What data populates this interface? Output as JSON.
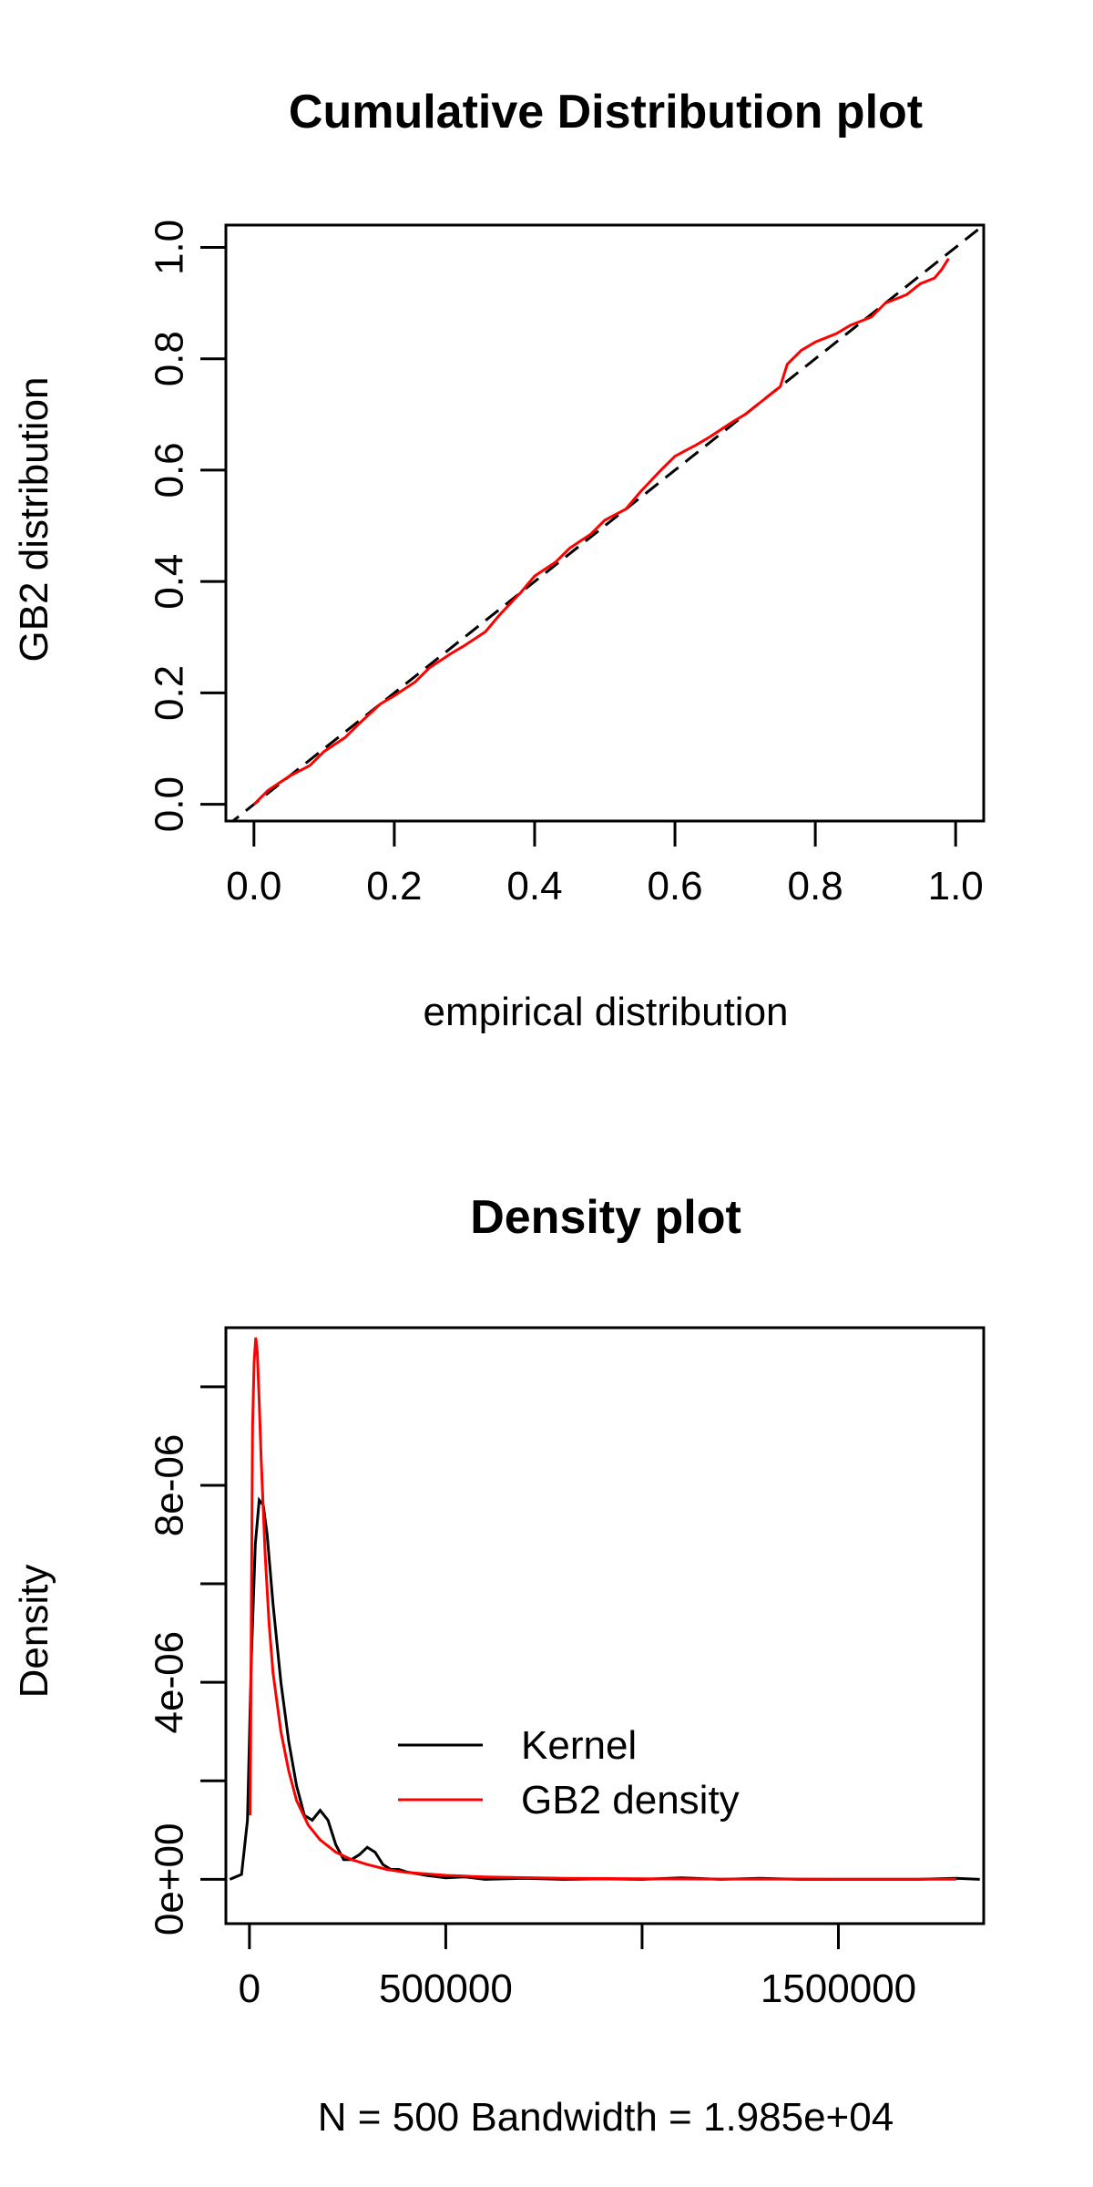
{
  "chart_data": [
    {
      "type": "line",
      "title": "Cumulative Distribution plot",
      "xlabel": "empirical distribution",
      "ylabel": "GB2 distribution",
      "xlim": [
        -0.04,
        1.04
      ],
      "ylim": [
        -0.03,
        1.04
      ],
      "xticks": [
        "0.0",
        "0.2",
        "0.4",
        "0.6",
        "0.8",
        "1.0"
      ],
      "yticks": [
        "0.0",
        "0.2",
        "0.4",
        "0.6",
        "0.8",
        "1.0"
      ],
      "grid": false,
      "colors": {
        "fitted": "#ff0000",
        "reference": "#000000"
      },
      "series": [
        {
          "style": "dashed",
          "color": "#000000",
          "x": [
            -0.04,
            1.04
          ],
          "y": [
            -0.04,
            1.04
          ]
        },
        {
          "style": "solid",
          "color": "#ff0000",
          "x": [
            0.0,
            0.02,
            0.05,
            0.08,
            0.1,
            0.13,
            0.15,
            0.18,
            0.2,
            0.23,
            0.25,
            0.28,
            0.3,
            0.33,
            0.35,
            0.38,
            0.4,
            0.43,
            0.45,
            0.48,
            0.5,
            0.53,
            0.55,
            0.58,
            0.6,
            0.63,
            0.65,
            0.68,
            0.7,
            0.73,
            0.75,
            0.76,
            0.78,
            0.8,
            0.83,
            0.85,
            0.88,
            0.9,
            0.93,
            0.95,
            0.97,
            0.98,
            0.99
          ],
          "y": [
            0.0,
            0.025,
            0.05,
            0.07,
            0.095,
            0.12,
            0.145,
            0.18,
            0.195,
            0.22,
            0.245,
            0.27,
            0.285,
            0.31,
            0.34,
            0.38,
            0.41,
            0.435,
            0.46,
            0.485,
            0.51,
            0.53,
            0.56,
            0.6,
            0.625,
            0.645,
            0.66,
            0.685,
            0.7,
            0.73,
            0.75,
            0.79,
            0.815,
            0.83,
            0.845,
            0.86,
            0.875,
            0.9,
            0.915,
            0.935,
            0.945,
            0.96,
            0.98
          ]
        }
      ]
    },
    {
      "type": "line",
      "title": "Density plot",
      "xlabel": "N = 500   Bandwidth = 1.985e+04",
      "ylabel": "Density",
      "xlim": [
        -60000,
        1870000
      ],
      "ylim": [
        -9e-07,
        1.12e-05
      ],
      "xticks": [
        {
          "value": 0,
          "label": "0"
        },
        {
          "value": 500000,
          "label": "500000"
        },
        {
          "value": 1000000,
          "label": ""
        },
        {
          "value": 1500000,
          "label": "1500000"
        }
      ],
      "yticks": [
        {
          "value": 0,
          "label": "0e+00"
        },
        {
          "value": 2e-06,
          "label": ""
        },
        {
          "value": 4e-06,
          "label": "4e-06"
        },
        {
          "value": 6e-06,
          "label": ""
        },
        {
          "value": 8e-06,
          "label": "8e-06"
        },
        {
          "value": 1e-05,
          "label": ""
        }
      ],
      "grid": false,
      "legend_position": "center-right",
      "legend": [
        {
          "label": "Kernel",
          "color": "#000000"
        },
        {
          "label": "GB2 density",
          "color": "#ff0000"
        }
      ],
      "series": [
        {
          "name": "Kernel",
          "color": "#000000",
          "x": [
            -50000,
            -20000,
            -5000,
            5000,
            15000,
            25000,
            35000,
            45000,
            60000,
            80000,
            100000,
            120000,
            140000,
            160000,
            180000,
            200000,
            220000,
            240000,
            260000,
            280000,
            300000,
            320000,
            340000,
            360000,
            380000,
            400000,
            450000,
            500000,
            550000,
            600000,
            700000,
            800000,
            900000,
            1000000,
            1100000,
            1200000,
            1300000,
            1400000,
            1500000,
            1600000,
            1700000,
            1800000,
            1860000
          ],
          "y": [
            0.0,
            1e-07,
            1.2e-06,
            4.5e-06,
            6.8e-06,
            7.7e-06,
            7.6e-06,
            7e-06,
            5.6e-06,
            4e-06,
            2.8e-06,
            1.9e-06,
            1.3e-06,
            1.2e-06,
            1.4e-06,
            1.2e-06,
            7e-07,
            4e-07,
            4e-07,
            5e-07,
            6.5e-07,
            5.5e-07,
            3e-07,
            2e-07,
            2e-07,
            1.5e-07,
            8e-08,
            3e-08,
            5e-08,
            0.0,
            2e-08,
            0.0,
            1e-08,
            0.0,
            3e-08,
            0.0,
            2e-08,
            0.0,
            0.0,
            0.0,
            0.0,
            2e-08,
            0.0
          ]
        },
        {
          "name": "GB2 density",
          "color": "#ff0000",
          "x": [
            2000,
            5000,
            8000,
            12000,
            16000,
            20000,
            25000,
            30000,
            40000,
            50000,
            60000,
            80000,
            100000,
            120000,
            150000,
            180000,
            220000,
            260000,
            300000,
            350000,
            400000,
            500000,
            600000,
            800000,
            1000000,
            1200000,
            1500000,
            1800000
          ],
          "y": [
            1.3e-06,
            5.5e-06,
            9.2e-06,
            1.05e-05,
            1.1e-05,
            1.07e-05,
            9.7e-06,
            8.5e-06,
            6.6e-06,
            5.2e-06,
            4.2e-06,
            3e-06,
            2.2e-06,
            1.6e-06,
            1.1e-06,
            8e-07,
            5.5e-07,
            4e-07,
            3e-07,
            2e-07,
            1.4e-07,
            8e-08,
            5e-08,
            2e-08,
            1e-08,
            5e-09,
            2e-09,
            1e-09
          ]
        }
      ]
    }
  ]
}
